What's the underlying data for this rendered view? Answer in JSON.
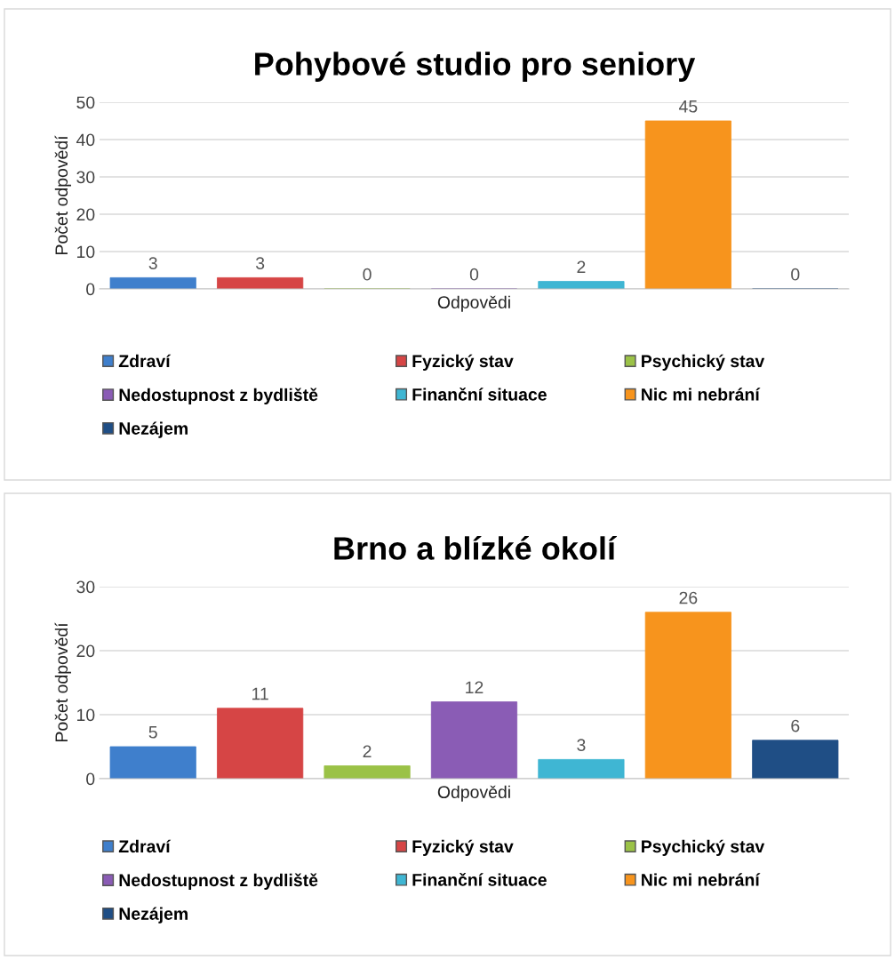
{
  "chart_data": [
    {
      "type": "bar",
      "title": "Pohybové studio pro seniory",
      "xlabel": "Odpovědi",
      "ylabel": "Počet odpovědí",
      "categories": [
        null
      ],
      "ylim": [
        0,
        50
      ],
      "yticks": [
        0,
        10,
        20,
        30,
        40,
        50
      ],
      "grid": "y",
      "legend": "bottom",
      "data_labels": true,
      "series": [
        {
          "name": "Zdraví",
          "color": "#3f7fcc",
          "values": [
            3
          ]
        },
        {
          "name": "Fyzický stav",
          "color": "#d64545",
          "values": [
            3
          ]
        },
        {
          "name": "Psychický stav",
          "color": "#9bc247",
          "values": [
            0
          ]
        },
        {
          "name": "Nedostupnost z bydliště",
          "color": "#8a5cb5",
          "values": [
            0
          ]
        },
        {
          "name": "Finanční situace",
          "color": "#3fb6d3",
          "values": [
            2
          ]
        },
        {
          "name": "Nic mi nebrání",
          "color": "#f7941d",
          "values": [
            45
          ]
        },
        {
          "name": "Nezájem",
          "color": "#1f4e85",
          "values": [
            0
          ]
        }
      ]
    },
    {
      "type": "bar",
      "title": "Brno a blízké okolí",
      "xlabel": "Odpovědi",
      "ylabel": "Počet odpovědí",
      "categories": [
        null
      ],
      "ylim": [
        0,
        30
      ],
      "yticks": [
        0,
        10,
        20,
        30
      ],
      "grid": "y",
      "legend": "bottom",
      "data_labels": true,
      "series": [
        {
          "name": "Zdraví",
          "color": "#3f7fcc",
          "values": [
            5
          ]
        },
        {
          "name": "Fyzický stav",
          "color": "#d64545",
          "values": [
            11
          ]
        },
        {
          "name": "Psychický stav",
          "color": "#9bc247",
          "values": [
            2
          ]
        },
        {
          "name": "Nedostupnost z bydliště",
          "color": "#8a5cb5",
          "values": [
            12
          ]
        },
        {
          "name": "Finanční situace",
          "color": "#3fb6d3",
          "values": [
            3
          ]
        },
        {
          "name": "Nic mi nebrání",
          "color": "#f7941d",
          "values": [
            26
          ]
        },
        {
          "name": "Nezájem",
          "color": "#1f4e85",
          "values": [
            6
          ]
        }
      ]
    }
  ]
}
